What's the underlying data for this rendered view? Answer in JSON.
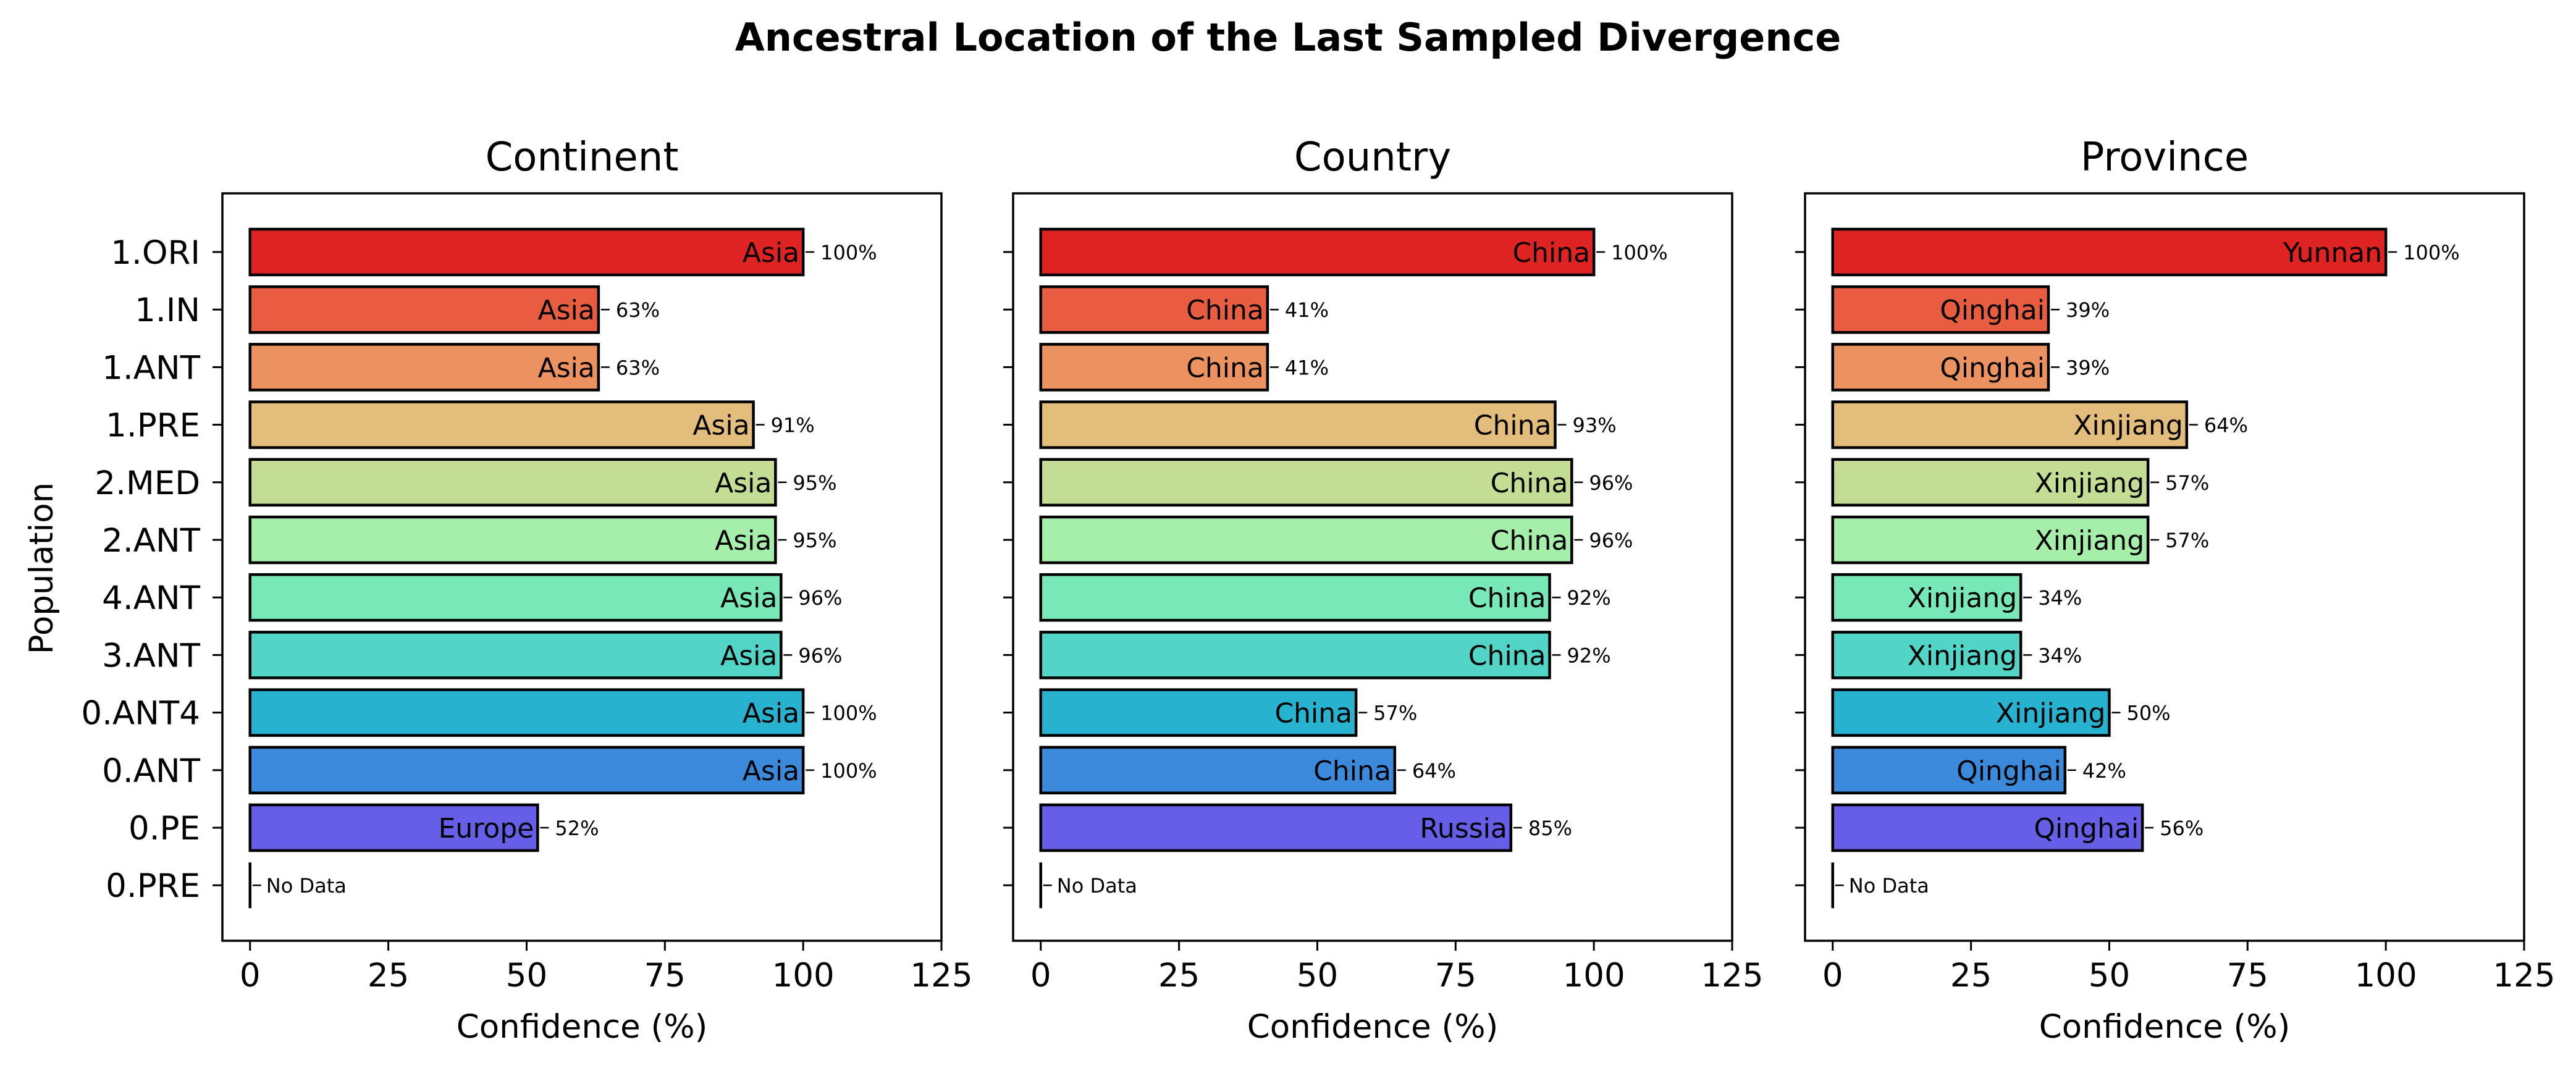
{
  "title": "Ancestral Location of the Last Sampled Divergence",
  "ylabel": "Population",
  "chart_data": [
    {
      "type": "bar",
      "orientation": "horizontal",
      "title": "Continent",
      "xlabel": "Confidence (%)",
      "xlim": [
        -5,
        125
      ],
      "xticks": [
        0,
        25,
        50,
        75,
        100,
        125
      ],
      "categories": [
        "1.ORI",
        "1.IN",
        "1.ANT",
        "1.PRE",
        "2.MED",
        "2.ANT",
        "4.ANT",
        "3.ANT",
        "0.ANT4",
        "0.ANT",
        "0.PE",
        "0.PRE"
      ],
      "values": [
        100,
        63,
        63,
        91,
        95,
        95,
        96,
        96,
        100,
        100,
        52,
        0
      ],
      "labels": [
        "Asia",
        "Asia",
        "Asia",
        "Asia",
        "Asia",
        "Asia",
        "Asia",
        "Asia",
        "Asia",
        "Asia",
        "Europe",
        ""
      ],
      "annotations": [
        "100%",
        "63%",
        "63%",
        "91%",
        "95%",
        "95%",
        "96%",
        "96%",
        "100%",
        "100%",
        "52%",
        "No Data"
      ]
    },
    {
      "type": "bar",
      "orientation": "horizontal",
      "title": "Country",
      "xlabel": "Confidence (%)",
      "xlim": [
        -5,
        125
      ],
      "xticks": [
        0,
        25,
        50,
        75,
        100,
        125
      ],
      "categories": [
        "1.ORI",
        "1.IN",
        "1.ANT",
        "1.PRE",
        "2.MED",
        "2.ANT",
        "4.ANT",
        "3.ANT",
        "0.ANT4",
        "0.ANT",
        "0.PE",
        "0.PRE"
      ],
      "values": [
        100,
        41,
        41,
        93,
        96,
        96,
        92,
        92,
        57,
        64,
        85,
        0
      ],
      "labels": [
        "China",
        "China",
        "China",
        "China",
        "China",
        "China",
        "China",
        "China",
        "China",
        "China",
        "Russia",
        ""
      ],
      "annotations": [
        "100%",
        "41%",
        "41%",
        "93%",
        "96%",
        "96%",
        "92%",
        "92%",
        "57%",
        "64%",
        "85%",
        "No Data"
      ]
    },
    {
      "type": "bar",
      "orientation": "horizontal",
      "title": "Province",
      "xlabel": "Confidence (%)",
      "xlim": [
        -5,
        125
      ],
      "xticks": [
        0,
        25,
        50,
        75,
        100,
        125
      ],
      "categories": [
        "1.ORI",
        "1.IN",
        "1.ANT",
        "1.PRE",
        "2.MED",
        "2.ANT",
        "4.ANT",
        "3.ANT",
        "0.ANT4",
        "0.ANT",
        "0.PE",
        "0.PRE"
      ],
      "values": [
        100,
        39,
        39,
        64,
        57,
        57,
        34,
        34,
        50,
        42,
        56,
        0
      ],
      "labels": [
        "Yunnan",
        "Qinghai",
        "Qinghai",
        "Xinjiang",
        "Xinjiang",
        "Xinjiang",
        "Xinjiang",
        "Xinjiang",
        "Xinjiang",
        "Qinghai",
        "Qinghai",
        ""
      ],
      "annotations": [
        "100%",
        "39%",
        "39%",
        "64%",
        "57%",
        "57%",
        "34%",
        "34%",
        "50%",
        "42%",
        "56%",
        "No Data"
      ]
    }
  ],
  "colors": [
    "#df2323",
    "#e85c40",
    "#eb9260",
    "#e2bd7c",
    "#c3dd95",
    "#a6efaa",
    "#79e8b8",
    "#52d4c6",
    "#27b2cf",
    "#3a89db",
    "#655ee6",
    "#7f00ff"
  ]
}
